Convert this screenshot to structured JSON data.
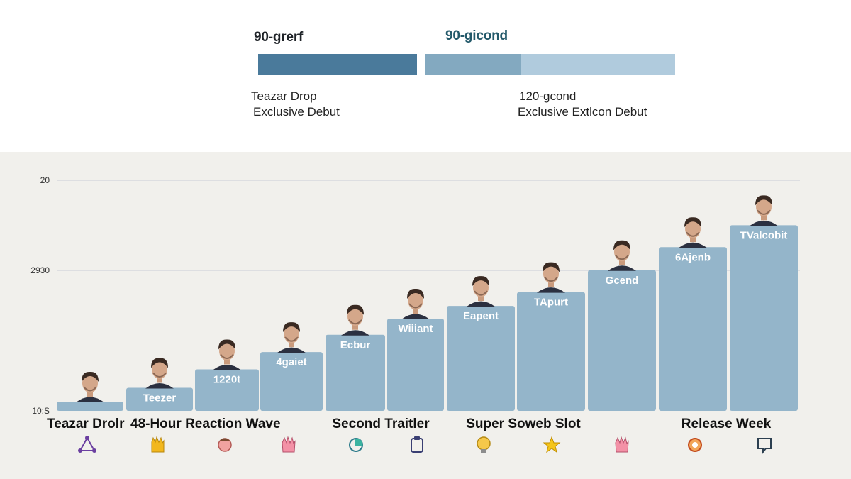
{
  "legend": {
    "segment_1_title": "90-grerf",
    "segment_2_title": "90-gicond",
    "segment_1_label_line1": "Teazar Drop",
    "segment_1_label_line2": "Exclusive Debut",
    "segment_2_label_line1": "120-gcond",
    "segment_2_label_line2": "Exclusive Extlcon Debut"
  },
  "chart_data": {
    "type": "bar",
    "title": "",
    "xlabel": "",
    "ylabel": "",
    "y_ticks": [
      "20",
      "2930",
      "10:S"
    ],
    "ylim": [
      0,
      20
    ],
    "grid": true,
    "categories": [
      "Teazar Drop",
      "48-Hour Reaction Wave",
      "",
      "",
      "Second Trailler",
      "",
      "Super Soweb Slot",
      "",
      "",
      "Release Week",
      ""
    ],
    "category_axis_labels": [
      {
        "text": "Teazar Drolr",
        "icon": "atom-icon"
      },
      {
        "text": "48-Hour Reaction Wave",
        "icon": "hand-icon"
      },
      {
        "text": "",
        "icon": "face-icon"
      },
      {
        "text": "",
        "icon": "raised-hand-icon"
      },
      {
        "text": "Second Traitler",
        "icon": "globe-icon"
      },
      {
        "text": "",
        "icon": "clipboard-icon"
      },
      {
        "text": "Super Soweb Slot",
        "icon": "lightbulb-icon"
      },
      {
        "text": "",
        "icon": "star-icon"
      },
      {
        "text": "",
        "icon": "raised-hand-icon"
      },
      {
        "text": "Release Week",
        "icon": "badge-icon"
      },
      {
        "text": "",
        "icon": "chat-icon"
      }
    ],
    "bar_labels": [
      "",
      "Teezer",
      "1220t",
      "4gaiet",
      "Ecbur",
      "Wiiiant",
      "Eapent",
      "TApurt",
      "Gcend",
      "6Ajenb",
      "TValcobit"
    ],
    "values": [
      0.8,
      2.0,
      3.6,
      5.1,
      6.6,
      8.0,
      9.1,
      10.3,
      12.2,
      14.2,
      16.1
    ],
    "colors": {
      "bar": "#94b5ca",
      "grid": "#c9cdd6"
    }
  }
}
